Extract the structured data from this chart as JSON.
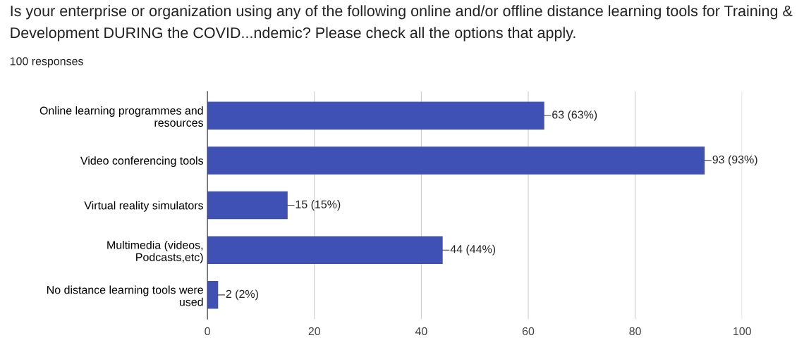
{
  "chart_data": {
    "type": "bar",
    "orientation": "horizontal",
    "title": "Is your enterprise or organization using any of the following online and/or offline distance learning tools for Training & Development DURING the COVID...ndemic? Please check all the options that apply.",
    "subtitle": "100 responses",
    "categories": [
      "Online learning programmes and\nresources",
      "Video conferencing tools",
      "Virtual reality simulators",
      "Multimedia (videos,\nPodcasts,etc)",
      "No distance learning tools were\nused"
    ],
    "values": [
      63,
      93,
      15,
      44,
      2
    ],
    "value_labels": [
      "63 (63%)",
      "93 (93%)",
      "15 (15%)",
      "44 (44%)",
      "2 (2%)"
    ],
    "color": "#3f51b5",
    "xlim": [
      0,
      100
    ],
    "xticks": [
      0,
      20,
      40,
      60,
      80,
      100
    ],
    "grid": "x"
  }
}
